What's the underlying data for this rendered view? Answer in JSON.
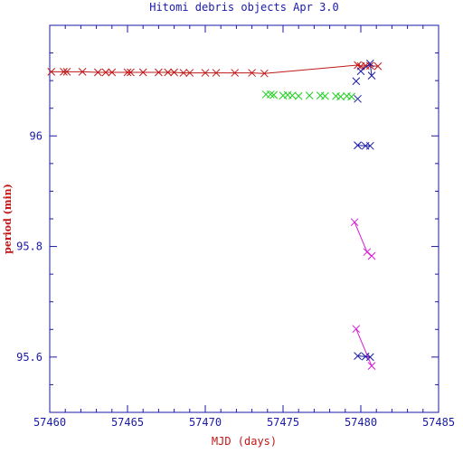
{
  "chart_data": {
    "type": "scatter",
    "title": "Hitomi debris objects Apr 3.0",
    "xlabel": "MJD (days)",
    "ylabel": "period (min)",
    "xlim": [
      57460,
      57485
    ],
    "ylim": [
      95.5,
      96.2
    ],
    "x_ticks": [
      57460,
      57465,
      57470,
      57475,
      57480,
      57485
    ],
    "y_ticks": [
      95.6,
      95.8,
      96
    ],
    "x_tick_labels": [
      "57460",
      "57465",
      "57470",
      "57475",
      "57480",
      "57485"
    ],
    "y_tick_labels": [
      "95.6",
      "95.8",
      "96"
    ],
    "grid": false,
    "colors": {
      "axis": "#1a1aa6",
      "title": "#1a1aa6",
      "xlabel": "#c01818",
      "ylabel": "#c01818"
    },
    "series": [
      {
        "color": "#c01818",
        "line": "segments",
        "x": [
          57460.1,
          57460.9,
          57461.1,
          57462.1,
          57463.1,
          57463.6,
          57464.0,
          57465.0,
          57465.2,
          57466.0,
          57467.0,
          57467.6,
          57468.0,
          57468.6,
          57469.0,
          57470.0,
          57470.7,
          57471.9,
          57473.0,
          57473.8,
          57479.8,
          57480.0,
          57480.3,
          57480.6,
          57481.1
        ],
        "y": [
          96.116,
          96.116,
          96.116,
          96.116,
          96.115,
          96.115,
          96.115,
          96.115,
          96.115,
          96.115,
          96.115,
          96.115,
          96.115,
          96.114,
          96.114,
          96.114,
          96.114,
          96.114,
          96.114,
          96.113,
          96.128,
          96.126,
          96.127,
          96.127,
          96.126
        ],
        "segments": [
          [
            0,
            19
          ],
          [
            19,
            20
          ],
          [
            20,
            24
          ]
        ]
      },
      {
        "color": "#1fd11f",
        "line": "none",
        "x": [
          57473.9,
          57474.2,
          57474.4,
          57475.0,
          57475.3,
          57475.6,
          57476.0,
          57476.7,
          57477.4,
          57477.7,
          57478.4,
          57478.7,
          57479.1,
          57479.4
        ],
        "y": [
          96.075,
          96.075,
          96.074,
          96.073,
          96.074,
          96.073,
          96.072,
          96.073,
          96.073,
          96.072,
          96.072,
          96.071,
          96.072,
          96.071
        ]
      },
      {
        "color": "#1a1aa6",
        "line": "segments",
        "x": [
          57479.7,
          57479.8,
          57480.0,
          57480.6,
          57480.7,
          57479.8,
          57479.8,
          57480.3,
          57480.6,
          57479.8,
          57480.3,
          57480.6
        ],
        "y": [
          96.099,
          96.067,
          96.117,
          96.131,
          96.109,
          95.983,
          95.983,
          95.982,
          95.982,
          95.602,
          95.601,
          95.6
        ],
        "segments": [
          [
            2,
            4
          ],
          [
            5,
            8
          ],
          [
            9,
            11
          ]
        ]
      },
      {
        "color": "#d61cd6",
        "line": "segments",
        "x": [
          57479.6,
          57480.4,
          57480.7,
          57479.7,
          57480.7
        ],
        "y": [
          95.844,
          95.79,
          95.783,
          95.651,
          95.584
        ],
        "segments": [
          [
            0,
            2
          ],
          [
            3,
            4
          ]
        ]
      }
    ]
  }
}
